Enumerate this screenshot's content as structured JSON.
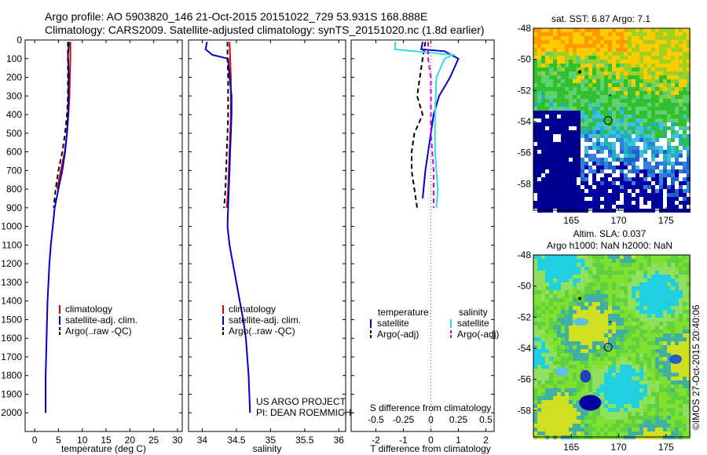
{
  "header": {
    "line1": "Argo profile: AO 5903820_146 21-Oct-2015 20151022_729 53.931S 168.888E",
    "line2": "Climatology: CARS2009. Satellite-adjusted climatology: synTS_20151020.nc (1.8d earlier)"
  },
  "colors": {
    "climatology": "#e00000",
    "satellite": "#0000cc",
    "argo": "#000000",
    "sat_salinity": "#33dddd",
    "argo_salinity": "#dd00dd"
  },
  "chart_data": [
    {
      "type": "line",
      "id": "temperature",
      "xlabel": "temperature (deg C)",
      "xlim": [
        -2,
        31
      ],
      "xticks": [
        0,
        5,
        10,
        15,
        20,
        25,
        30
      ],
      "ylim": [
        0,
        2100
      ],
      "yticks": [
        0,
        100,
        200,
        300,
        400,
        500,
        600,
        700,
        800,
        900,
        1000,
        1100,
        1200,
        1300,
        1400,
        1500,
        1600,
        1700,
        1800,
        1900,
        2000
      ],
      "legend": [
        "climatology",
        "satellite-adj. clim.",
        "Argo(..raw -QC)"
      ],
      "series": [
        {
          "name": "climatology",
          "color": "#e00000",
          "dash": "",
          "x": [
            7.5,
            7.5,
            7.4,
            7.3,
            7.1,
            6.8,
            6.3,
            5.5,
            4.7
          ],
          "y": [
            10,
            100,
            200,
            300,
            400,
            500,
            600,
            700,
            800
          ]
        },
        {
          "name": "satellite-adj. clim.",
          "color": "#0000cc",
          "dash": "",
          "x": [
            7.2,
            7.1,
            7.0,
            7.1,
            7.1,
            7.0,
            6.8,
            6.4,
            5.8,
            5.0,
            4.2,
            3.8,
            3.4,
            3.1,
            2.9,
            2.7,
            2.6,
            2.5,
            2.4,
            2.3,
            2.3
          ],
          "y": [
            10,
            50,
            80,
            150,
            300,
            400,
            500,
            600,
            700,
            800,
            900,
            1000,
            1100,
            1200,
            1300,
            1400,
            1500,
            1600,
            1700,
            1800,
            2000
          ]
        },
        {
          "name": "Argo(..raw -QC)",
          "color": "#000000",
          "dash": "6,4",
          "x": [
            7.0,
            7.0,
            7.0,
            7.0,
            6.8,
            6.4,
            5.8,
            5.0,
            4.4,
            4.0
          ],
          "y": [
            10,
            100,
            200,
            300,
            400,
            500,
            600,
            700,
            800,
            900
          ]
        }
      ]
    },
    {
      "type": "line",
      "id": "salinity",
      "xlabel": "salinity",
      "xlim": [
        33.8,
        36.1
      ],
      "xticks": [
        34,
        34.5,
        35,
        35.5,
        36
      ],
      "ylim": [
        0,
        2100
      ],
      "legend": [
        "climatology",
        "satellite-adj. clim.",
        "Argo(..raw -QC)"
      ],
      "series": [
        {
          "name": "climatology",
          "color": "#e00000",
          "dash": "",
          "x": [
            34.4,
            34.41,
            34.42,
            34.42,
            34.42,
            34.41,
            34.4,
            34.39,
            34.38,
            34.36
          ],
          "y": [
            10,
            100,
            200,
            300,
            400,
            500,
            600,
            700,
            800,
            900
          ]
        },
        {
          "name": "satellite-adj. clim.",
          "color": "#0000cc",
          "dash": "",
          "x": [
            34.07,
            34.05,
            34.15,
            34.38,
            34.4,
            34.43,
            34.43,
            34.42,
            34.41,
            34.4,
            34.39,
            34.38,
            34.37,
            34.4,
            34.45,
            34.5,
            34.55,
            34.6,
            34.64,
            34.68,
            34.7
          ],
          "y": [
            10,
            50,
            80,
            100,
            200,
            300,
            400,
            500,
            600,
            700,
            800,
            900,
            1000,
            1100,
            1200,
            1300,
            1400,
            1500,
            1600,
            1800,
            2000
          ]
        },
        {
          "name": "Argo(..raw -QC)",
          "color": "#000000",
          "dash": "6,4",
          "x": [
            34.37,
            34.37,
            34.38,
            34.38,
            34.38,
            34.37,
            34.36,
            34.35,
            34.34,
            34.32
          ],
          "y": [
            10,
            100,
            200,
            300,
            400,
            500,
            600,
            700,
            800,
            900
          ]
        }
      ],
      "annotation": [
        "US ARGO PROJECT",
        "PI: DEAN ROEMMICH"
      ]
    },
    {
      "type": "line",
      "id": "difference",
      "xlabel": "T difference from climatology",
      "xlabel2": "S difference from climatology",
      "xlim": [
        -2.9,
        2.3
      ],
      "xticks": [
        -2,
        -1,
        0,
        1,
        2
      ],
      "top_ticks": [
        -0.5,
        -0.25,
        0,
        0.25,
        0.5
      ],
      "ylim": [
        0,
        2100
      ],
      "legend_heads": [
        "temperature",
        "salinity"
      ],
      "legend": [
        "satellite",
        "Argo(-adj)",
        "satellite",
        "Argo(-adj)"
      ],
      "series": [
        {
          "name": "temperature satellite",
          "color": "#0000cc",
          "dash": "",
          "x": [
            -0.3,
            -0.35,
            0.5,
            1.0,
            0.7,
            0.3,
            0.1,
            0.0,
            -0.1,
            -0.2,
            -0.3
          ],
          "y": [
            10,
            50,
            60,
            100,
            200,
            300,
            400,
            500,
            600,
            700,
            850
          ]
        },
        {
          "name": "temperature Argo(-adj)",
          "color": "#000000",
          "dash": "6,4",
          "x": [
            -0.2,
            -0.3,
            -0.4,
            -0.5,
            -0.3,
            -0.6,
            -0.7,
            -0.7,
            -0.6,
            -0.5
          ],
          "y": [
            10,
            100,
            200,
            300,
            400,
            500,
            600,
            700,
            800,
            900
          ]
        },
        {
          "name": "salinity satellite",
          "color": "#33dddd",
          "dash": "",
          "x": [
            -1.3,
            -1.3,
            0.8,
            0.5,
            0.2,
            0.15,
            0.15,
            0.2,
            0.25,
            0.2
          ],
          "y": [
            10,
            50,
            80,
            100,
            200,
            400,
            600,
            700,
            800,
            900
          ]
        },
        {
          "name": "salinity Argo(-adj)",
          "color": "#dd00dd",
          "dash": "6,4",
          "x": [
            -0.1,
            -0.1,
            0.0,
            0.0,
            0.0,
            0.0,
            0.05,
            0.1,
            0.1,
            0.1
          ],
          "y": [
            10,
            100,
            200,
            300,
            400,
            500,
            600,
            700,
            800,
            900
          ]
        }
      ]
    },
    {
      "type": "heatmap",
      "id": "sst_map",
      "title": "sat. SST: 6.87 Argo: 7.1",
      "xlim": [
        161,
        177.5
      ],
      "ylim": [
        -59.7,
        -48
      ],
      "xticks": [
        165,
        170,
        175
      ],
      "yticks": [
        -48,
        -50,
        -52,
        -54,
        -56,
        -58
      ],
      "float_position": [
        168.888,
        -53.931
      ]
    },
    {
      "type": "heatmap",
      "id": "sla_map",
      "title": "Altim. SLA: 0.037",
      "title2": "Argo h1000: NaN h2000: NaN",
      "xlim": [
        161,
        177.5
      ],
      "ylim": [
        -59.7,
        -48
      ],
      "xticks": [
        165,
        170,
        175
      ],
      "yticks": [
        -48,
        -50,
        -52,
        -54,
        -56,
        -58
      ],
      "float_position": [
        168.888,
        -53.931
      ]
    }
  ],
  "credit": "©IMOS 27-Oct-2015 20:40:06"
}
